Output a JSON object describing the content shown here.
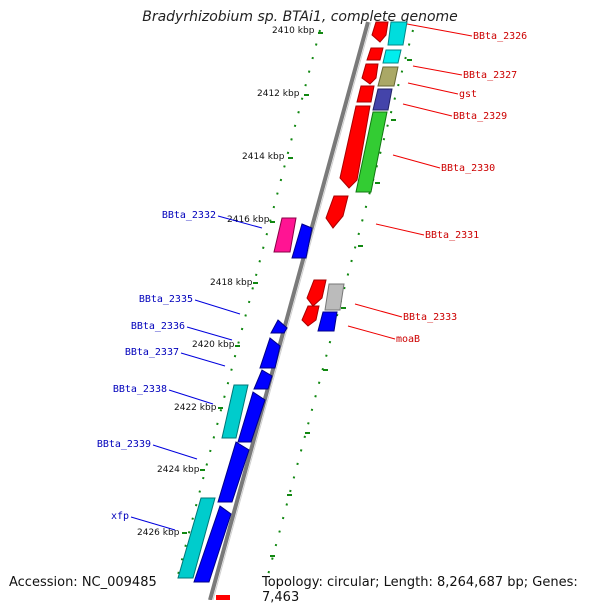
{
  "title": "Bradyrhizobium sp. BTAi1, complete genome",
  "footer": {
    "accession": "Accession: NC_009485",
    "topology": "Topology: circular; Length: 8,264,687 bp; Genes: 7,463"
  },
  "colors": {
    "backbone": "#7a7a7a",
    "tick": "#118811",
    "label_right": "#cc0000",
    "label_left": "#0000bb"
  },
  "kbp_labels": [
    "2410 kbp",
    "2412 kbp",
    "2414 kbp",
    "2416 kbp",
    "2418 kbp",
    "2420 kbp",
    "2422 kbp",
    "2424 kbp",
    "2426 kbp"
  ],
  "gene_labels_right": [
    "BBta_2326",
    "BBta_2327",
    "gst",
    "BBta_2329",
    "BBta_2330",
    "BBta_2331",
    "BBta_2333",
    "moaB"
  ],
  "gene_labels_left": [
    "BBta_2332",
    "BBta_2335",
    "BBta_2336",
    "BBta_2337",
    "BBta_2338",
    "BBta_2339",
    "xfp"
  ]
}
